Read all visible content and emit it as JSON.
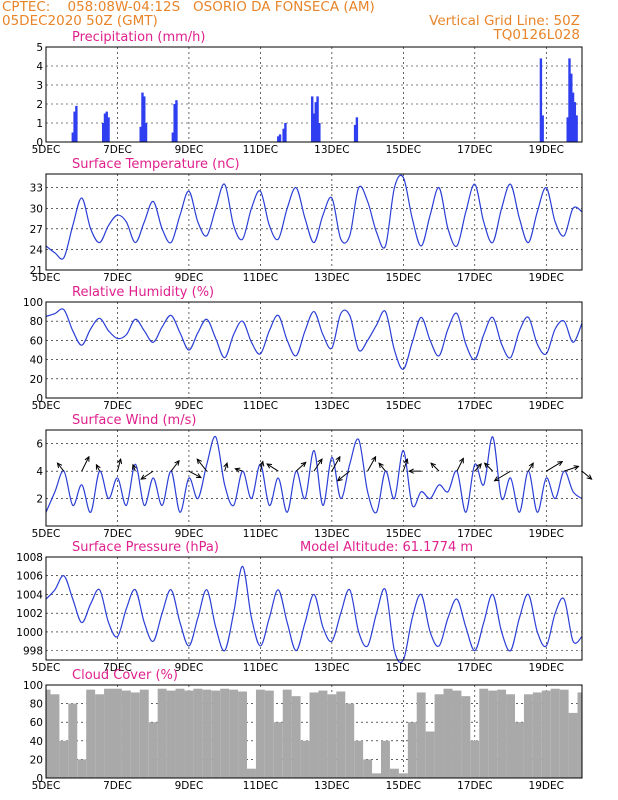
{
  "header": {
    "source": "CPTEC:",
    "coords": "058:08W-04:12S",
    "station": "OSORIO DA FONSECA (AM)",
    "init": "05DEC2020 50Z (GMT)",
    "grid_note": "Vertical Grid Line: 50Z",
    "run_id": "TQ0126L028"
  },
  "colors": {
    "header": "#e8852a",
    "title": "#e0208c",
    "line": "#2b3fd6",
    "bar": "#2f3ff0",
    "cloud": "#a9a9a9"
  },
  "x_axis": {
    "day_min": 5,
    "day_max": 20,
    "ticks": [
      5,
      7,
      9,
      11,
      13,
      15,
      17,
      19
    ],
    "tick_labels": [
      "5DEC",
      "7DEC",
      "9DEC",
      "11DEC",
      "13DEC",
      "15DEC",
      "17DEC",
      "19DEC"
    ]
  },
  "chart_data": [
    {
      "id": "precip",
      "type": "bar",
      "title": "Precipitation (mm/h)",
      "ylim": [
        0,
        5
      ],
      "yticks": [
        0,
        1,
        2,
        3,
        4,
        5
      ],
      "x_unit": "day of Dec 2020",
      "x": [
        5.75,
        5.8,
        5.85,
        6.6,
        6.65,
        6.7,
        6.75,
        7.65,
        7.7,
        7.75,
        7.8,
        8.55,
        8.6,
        8.65,
        11.5,
        11.55,
        11.65,
        11.7,
        12.45,
        12.5,
        12.55,
        12.6,
        12.65,
        13.65,
        13.7,
        18.85,
        18.9,
        19.6,
        19.65,
        19.7,
        19.75,
        19.8,
        19.85
      ],
      "values": [
        0.5,
        1.6,
        1.9,
        1.0,
        1.5,
        1.6,
        1.3,
        0.8,
        2.6,
        2.4,
        1.0,
        0.5,
        2.0,
        2.2,
        0.3,
        0.4,
        0.7,
        1.0,
        2.4,
        1.5,
        2.1,
        2.4,
        1.0,
        0.9,
        1.3,
        4.4,
        1.4,
        1.3,
        4.4,
        3.6,
        2.6,
        2.1,
        1.4
      ]
    },
    {
      "id": "temp",
      "type": "line",
      "title": "Surface Temperature (nC)",
      "ylim": [
        21,
        35
      ],
      "yticks": [
        21,
        24,
        27,
        30,
        33
      ],
      "x": [
        5.0,
        5.25,
        5.5,
        5.75,
        6.0,
        6.25,
        6.5,
        6.75,
        7.0,
        7.25,
        7.5,
        7.75,
        8.0,
        8.25,
        8.5,
        8.75,
        9.0,
        9.25,
        9.5,
        9.75,
        10.0,
        10.25,
        10.5,
        10.75,
        11.0,
        11.25,
        11.5,
        11.75,
        12.0,
        12.25,
        12.5,
        12.75,
        13.0,
        13.25,
        13.5,
        13.75,
        14.0,
        14.25,
        14.5,
        14.75,
        15.0,
        15.25,
        15.5,
        15.75,
        16.0,
        16.25,
        16.5,
        16.75,
        17.0,
        17.25,
        17.5,
        17.75,
        18.0,
        18.25,
        18.5,
        18.75,
        19.0,
        19.25,
        19.5,
        19.75,
        20.0
      ],
      "values": [
        24.5,
        23.5,
        22.8,
        27.5,
        31.5,
        27.0,
        25.0,
        27.5,
        29.0,
        28.0,
        25.0,
        28.0,
        31.0,
        27.0,
        25.0,
        29.0,
        32.5,
        28.0,
        26.0,
        30.0,
        33.5,
        27.5,
        25.5,
        30.0,
        32.5,
        27.5,
        25.5,
        30.0,
        33.0,
        28.5,
        25.0,
        29.0,
        31.5,
        25.5,
        26.0,
        33.0,
        31.0,
        26.5,
        24.5,
        33.0,
        34.5,
        28.5,
        24.5,
        29.0,
        33.0,
        27.0,
        24.5,
        29.5,
        33.5,
        28.0,
        25.0,
        30.0,
        33.5,
        28.5,
        25.0,
        29.5,
        33.0,
        28.0,
        26.0,
        30.0,
        29.5
      ]
    },
    {
      "id": "rh",
      "type": "line",
      "title": "Relative Humidity (%)",
      "ylim": [
        0,
        100
      ],
      "yticks": [
        0,
        20,
        40,
        60,
        80,
        100
      ],
      "x": [
        5.0,
        5.25,
        5.5,
        5.75,
        6.0,
        6.25,
        6.5,
        6.75,
        7.0,
        7.25,
        7.5,
        7.75,
        8.0,
        8.25,
        8.5,
        8.75,
        9.0,
        9.25,
        9.5,
        9.75,
        10.0,
        10.25,
        10.5,
        10.75,
        11.0,
        11.25,
        11.5,
        11.75,
        12.0,
        12.25,
        12.5,
        12.75,
        13.0,
        13.25,
        13.5,
        13.75,
        14.0,
        14.25,
        14.5,
        14.75,
        15.0,
        15.25,
        15.5,
        15.75,
        16.0,
        16.25,
        16.5,
        16.75,
        17.0,
        17.25,
        17.5,
        17.75,
        18.0,
        18.25,
        18.5,
        18.75,
        19.0,
        19.25,
        19.5,
        19.75,
        20.0
      ],
      "values": [
        85,
        88,
        92,
        70,
        55,
        72,
        83,
        70,
        62,
        66,
        82,
        70,
        58,
        74,
        86,
        68,
        50,
        68,
        82,
        62,
        42,
        66,
        80,
        58,
        46,
        70,
        86,
        60,
        44,
        70,
        90,
        66,
        52,
        88,
        86,
        50,
        60,
        76,
        90,
        50,
        30,
        58,
        84,
        60,
        44,
        72,
        88,
        56,
        40,
        66,
        84,
        56,
        42,
        70,
        84,
        56,
        46,
        72,
        80,
        58,
        78
      ]
    },
    {
      "id": "wind",
      "type": "line",
      "title": "Surface Wind (m/s)",
      "ylim": [
        0,
        7
      ],
      "yticks": [
        2,
        4,
        6
      ],
      "x": [
        5.0,
        5.25,
        5.5,
        5.75,
        6.0,
        6.25,
        6.5,
        6.75,
        7.0,
        7.25,
        7.5,
        7.75,
        8.0,
        8.25,
        8.5,
        8.75,
        9.0,
        9.25,
        9.5,
        9.75,
        10.0,
        10.25,
        10.5,
        10.75,
        11.0,
        11.25,
        11.5,
        11.75,
        12.0,
        12.25,
        12.5,
        12.75,
        13.0,
        13.25,
        13.5,
        13.75,
        14.0,
        14.25,
        14.5,
        14.75,
        15.0,
        15.25,
        15.5,
        15.75,
        16.0,
        16.25,
        16.5,
        16.75,
        17.0,
        17.25,
        17.5,
        17.75,
        18.0,
        18.25,
        18.5,
        18.75,
        19.0,
        19.25,
        19.5,
        19.75,
        20.0
      ],
      "values": [
        1.0,
        2.5,
        4.0,
        1.5,
        3.0,
        1.0,
        4.0,
        2.0,
        3.5,
        1.5,
        4.5,
        1.5,
        3.5,
        1.5,
        4.0,
        1.0,
        3.5,
        2.0,
        4.5,
        6.5,
        3.0,
        1.5,
        4.0,
        2.0,
        4.5,
        1.5,
        3.5,
        1.0,
        4.0,
        2.0,
        5.5,
        1.5,
        5.0,
        2.0,
        4.5,
        6.3,
        2.5,
        1.0,
        4.0,
        2.0,
        5.5,
        1.5,
        2.5,
        2.0,
        3.0,
        2.5,
        4.0,
        1.0,
        4.5,
        3.0,
        6.5,
        2.0,
        3.5,
        1.0,
        4.0,
        1.0,
        3.5,
        2.0,
        4.0,
        2.5,
        2.0
      ],
      "vectors": {
        "x": [
          5.5,
          6.0,
          6.5,
          7.0,
          7.5,
          8.0,
          8.5,
          9.0,
          9.5,
          10.0,
          10.5,
          11.0,
          11.5,
          12.0,
          12.5,
          13.0,
          13.5,
          14.0,
          14.5,
          15.0,
          15.5,
          16.0,
          16.5,
          17.0,
          17.5,
          18.0,
          18.5,
          19.0,
          19.5,
          20.0
        ],
        "u": [
          -0.8,
          0.9,
          -0.4,
          0.4,
          -0.3,
          -1.5,
          1.0,
          1.5,
          -1.2,
          0.3,
          -0.9,
          0.3,
          -1.4,
          1.2,
          1.0,
          1.0,
          -1.5,
          1.0,
          -0.8,
          0.5,
          -1.5,
          -1.0,
          0.8,
          0.8,
          -1.0,
          -2.0,
          0.6,
          2.0,
          1.8,
          1.2
        ],
        "v": [
          1.0,
          1.8,
          0.8,
          1.5,
          0.8,
          -1.0,
          1.3,
          -0.8,
          1.5,
          1.0,
          0.3,
          1.2,
          0.9,
          1.1,
          1.5,
          1.8,
          -1.2,
          1.8,
          1.0,
          1.5,
          0.0,
          1.0,
          1.6,
          0.9,
          1.0,
          -1.2,
          1.0,
          1.2,
          0.6,
          -1.0
        ]
      }
    },
    {
      "id": "pres",
      "type": "line",
      "title": "Surface Pressure (hPa)",
      "annotation": "Model Altitude: 61.1774 m",
      "ylim": [
        997,
        1008
      ],
      "yticks": [
        998,
        1000,
        1002,
        1004,
        1006,
        1008
      ],
      "x": [
        5.0,
        5.25,
        5.5,
        5.75,
        6.0,
        6.25,
        6.5,
        6.75,
        7.0,
        7.25,
        7.5,
        7.75,
        8.0,
        8.25,
        8.5,
        8.75,
        9.0,
        9.25,
        9.5,
        9.75,
        10.0,
        10.25,
        10.5,
        10.75,
        11.0,
        11.25,
        11.5,
        11.75,
        12.0,
        12.25,
        12.5,
        12.75,
        13.0,
        13.25,
        13.5,
        13.75,
        14.0,
        14.25,
        14.5,
        14.75,
        15.0,
        15.25,
        15.5,
        15.75,
        16.0,
        16.25,
        16.5,
        16.75,
        17.0,
        17.25,
        17.5,
        17.75,
        18.0,
        18.25,
        18.5,
        18.75,
        19.0,
        19.25,
        19.5,
        19.75,
        20.0
      ],
      "values": [
        1003.5,
        1004.5,
        1006.0,
        1003.5,
        1001.0,
        1003.0,
        1004.5,
        1001.0,
        999.5,
        1002.5,
        1004.5,
        1001.0,
        999.0,
        1002.0,
        1004.5,
        1001.0,
        998.5,
        1001.5,
        1004.5,
        1000.5,
        998.0,
        1002.0,
        1007.0,
        1001.5,
        998.5,
        1001.5,
        1004.5,
        1001.0,
        998.0,
        1001.0,
        1004.0,
        1000.5,
        999.0,
        1002.0,
        1004.5,
        1000.0,
        998.5,
        1002.0,
        1004.5,
        998.0,
        997.0,
        1001.5,
        1004.0,
        1000.0,
        998.5,
        1001.5,
        1003.5,
        1000.5,
        998.0,
        1001.0,
        1004.0,
        1000.0,
        998.0,
        1001.5,
        1004.0,
        1000.0,
        998.5,
        1002.0,
        1003.5,
        999.0,
        999.5
      ]
    },
    {
      "id": "cloud",
      "type": "area",
      "title": "Cloud Cover (%)",
      "ylim": [
        0,
        100
      ],
      "yticks": [
        0,
        20,
        40,
        60,
        80,
        100
      ],
      "x": [
        5.0,
        5.25,
        5.5,
        5.75,
        6.0,
        6.25,
        6.5,
        6.75,
        7.0,
        7.25,
        7.5,
        7.75,
        8.0,
        8.25,
        8.5,
        8.75,
        9.0,
        9.25,
        9.5,
        9.75,
        10.0,
        10.25,
        10.5,
        10.75,
        11.0,
        11.25,
        11.5,
        11.75,
        12.0,
        12.25,
        12.5,
        12.75,
        13.0,
        13.25,
        13.5,
        13.75,
        14.0,
        14.25,
        14.5,
        14.75,
        15.0,
        15.25,
        15.5,
        15.75,
        16.0,
        16.25,
        16.5,
        16.75,
        17.0,
        17.25,
        17.5,
        17.75,
        18.0,
        18.25,
        18.5,
        18.75,
        19.0,
        19.25,
        19.5,
        19.75,
        20.0
      ],
      "values": [
        95,
        90,
        40,
        80,
        20,
        95,
        90,
        96,
        96,
        94,
        92,
        95,
        60,
        96,
        94,
        96,
        94,
        96,
        95,
        94,
        96,
        95,
        93,
        10,
        95,
        94,
        60,
        95,
        88,
        40,
        92,
        94,
        90,
        93,
        80,
        40,
        20,
        5,
        40,
        10,
        5,
        60,
        92,
        50,
        90,
        96,
        94,
        88,
        40,
        96,
        94,
        95,
        90,
        60,
        90,
        92,
        94,
        96,
        95,
        70,
        92
      ]
    }
  ]
}
